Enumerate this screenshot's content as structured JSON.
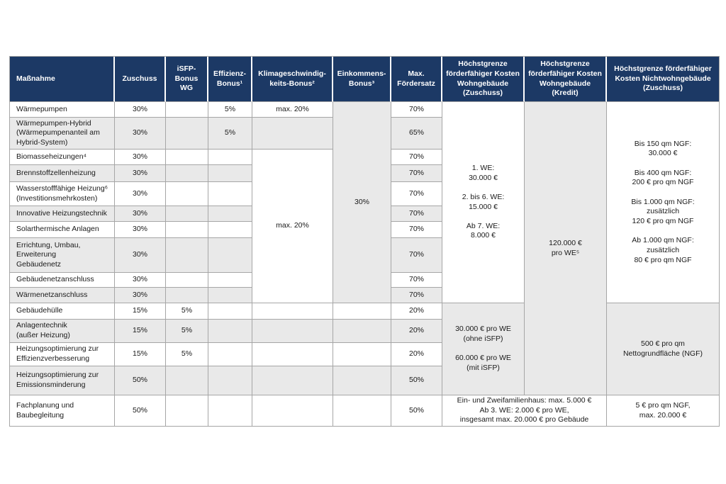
{
  "colors": {
    "header_bg": "#1c3965",
    "header_text": "#ffffff",
    "row_alt_bg": "#e9e9e9",
    "row_bg": "#ffffff",
    "border": "#a6a6a6",
    "body_text": "#1a1a1a"
  },
  "table": {
    "cells": [
      {
        "r": 1,
        "c": 1,
        "bg": "n",
        "align": "left",
        "name": "header-massnahme",
        "text": "Maßnahme"
      },
      {
        "r": 1,
        "c": 2,
        "bg": "n",
        "name": "header-zuschuss",
        "text": "Zuschuss"
      },
      {
        "r": 1,
        "c": 3,
        "bg": "n",
        "name": "header-isfp-bonus-wg",
        "text": "iSFP-Bonus WG"
      },
      {
        "r": 1,
        "c": 4,
        "bg": "n",
        "name": "header-effizienz-bonus",
        "text": "Effizienz-Bonus¹"
      },
      {
        "r": 1,
        "c": 5,
        "bg": "n",
        "name": "header-klimageschwindigkeits-bonus",
        "text": "Klimageschwindig-keits-Bonus²"
      },
      {
        "r": 1,
        "c": 6,
        "bg": "n",
        "name": "header-einkommens-bonus",
        "text": "Einkommens-Bonus³"
      },
      {
        "r": 1,
        "c": 7,
        "bg": "n",
        "name": "header-max-foerdersatz",
        "text": "Max. Fördersatz"
      },
      {
        "r": 1,
        "c": 8,
        "bg": "n",
        "name": "header-hoechstgrenze-wohngebaeude-zuschuss",
        "text": "Höchstgrenze förderfähiger Kosten Wohngebäude (Zuschuss)"
      },
      {
        "r": 1,
        "c": 9,
        "bg": "n",
        "name": "header-hoechstgrenze-wohngebaeude-kredit",
        "text": "Höchstgrenze förderfähiger Kosten Wohngebäude (Kredit)"
      },
      {
        "r": 1,
        "c": 10,
        "bg": "n",
        "name": "header-hoechstgrenze-nichtwohngebaeude-zuschuss",
        "text": "Höchstgrenze förderfähiger Kosten Nichtwohngebäude (Zuschuss)"
      },
      {
        "r": 2,
        "c": 1,
        "bg": "w",
        "align": "left",
        "name": "massnahme-waermepumpen",
        "text": "Wärmepumpen"
      },
      {
        "r": 2,
        "c": 2,
        "bg": "w",
        "text": "30%"
      },
      {
        "r": 2,
        "c": 3,
        "bg": "w",
        "text": ""
      },
      {
        "r": 2,
        "c": 4,
        "bg": "w",
        "text": "5%"
      },
      {
        "r": 2,
        "c": 5,
        "bg": "w",
        "name": "klima-bonus-waermepumpen",
        "text": "max. 20%"
      },
      {
        "r": 2,
        "c": 6,
        "rs": 10,
        "bg": "g",
        "name": "einkommens-bonus-merged",
        "text": "30%"
      },
      {
        "r": 2,
        "c": 7,
        "bg": "w",
        "text": "70%"
      },
      {
        "r": 2,
        "c": 8,
        "rs": 10,
        "bg": "w",
        "name": "limit-wohngebaeude-zuschuss-heizung",
        "text": "1. WE:\n30.000 €\n\n2. bis 6. WE:\n15.000 €\n\nAb 7. WE:\n8.000 €"
      },
      {
        "r": 2,
        "c": 9,
        "rs": 14,
        "bg": "g",
        "name": "limit-wohngebaeude-kredit",
        "text": "120.000 €\npro WE⁵"
      },
      {
        "r": 2,
        "c": 10,
        "rs": 10,
        "bg": "w",
        "name": "limit-nichtwohngebaeude-heizung",
        "text": "Bis 150 qm NGF:\n30.000 €\n\nBis 400 qm NGF:\n200 € pro qm NGF\n\nBis 1.000 qm NGF:\nzusätzlich\n120 € pro qm NGF\n\nAb 1.000 qm NGF:\nzusätzlich\n80 € pro qm NGF"
      },
      {
        "r": 3,
        "c": 1,
        "bg": "g",
        "align": "left",
        "name": "massnahme-waermepumpen-hybrid",
        "text": "Wärmepumpen-Hybrid\n(Wärmepumpenanteil am\nHybrid-System)"
      },
      {
        "r": 3,
        "c": 2,
        "bg": "g",
        "text": "30%"
      },
      {
        "r": 3,
        "c": 3,
        "bg": "g",
        "text": ""
      },
      {
        "r": 3,
        "c": 4,
        "bg": "g",
        "text": "5%"
      },
      {
        "r": 3,
        "c": 5,
        "bg": "g",
        "text": ""
      },
      {
        "r": 3,
        "c": 7,
        "bg": "g",
        "text": "65%"
      },
      {
        "r": 4,
        "c": 1,
        "bg": "w",
        "align": "left",
        "name": "massnahme-biomasseheizungen",
        "text": "Biomasseheizungen⁴"
      },
      {
        "r": 4,
        "c": 2,
        "bg": "w",
        "text": "30%"
      },
      {
        "r": 4,
        "c": 3,
        "bg": "w",
        "text": ""
      },
      {
        "r": 4,
        "c": 4,
        "bg": "w",
        "text": ""
      },
      {
        "r": 4,
        "c": 5,
        "rs": 8,
        "bg": "w",
        "name": "klima-bonus-merged",
        "text": "max. 20%"
      },
      {
        "r": 4,
        "c": 7,
        "bg": "w",
        "text": "70%"
      },
      {
        "r": 5,
        "c": 1,
        "bg": "g",
        "align": "left",
        "name": "massnahme-brennstoffzellenheizung",
        "text": "Brennstoffzellenheizung"
      },
      {
        "r": 5,
        "c": 2,
        "bg": "g",
        "text": "30%"
      },
      {
        "r": 5,
        "c": 3,
        "bg": "g",
        "text": ""
      },
      {
        "r": 5,
        "c": 4,
        "bg": "g",
        "text": ""
      },
      {
        "r": 5,
        "c": 7,
        "bg": "g",
        "text": "70%"
      },
      {
        "r": 6,
        "c": 1,
        "bg": "w",
        "align": "left",
        "name": "massnahme-wasserstofffaehige-heizung",
        "text": "Wasserstofffähige Heizung⁶\n(Investitionsmehrkosten)"
      },
      {
        "r": 6,
        "c": 2,
        "bg": "w",
        "text": "30%"
      },
      {
        "r": 6,
        "c": 3,
        "bg": "w",
        "text": ""
      },
      {
        "r": 6,
        "c": 4,
        "bg": "w",
        "text": ""
      },
      {
        "r": 6,
        "c": 7,
        "bg": "w",
        "text": "70%"
      },
      {
        "r": 7,
        "c": 1,
        "bg": "g",
        "align": "left",
        "name": "massnahme-innovative-heizungstechnik",
        "text": "Innovative Heizungstechnik"
      },
      {
        "r": 7,
        "c": 2,
        "bg": "g",
        "text": "30%"
      },
      {
        "r": 7,
        "c": 3,
        "bg": "g",
        "text": ""
      },
      {
        "r": 7,
        "c": 4,
        "bg": "g",
        "text": ""
      },
      {
        "r": 7,
        "c": 7,
        "bg": "g",
        "text": "70%"
      },
      {
        "r": 8,
        "c": 1,
        "bg": "w",
        "align": "left",
        "name": "massnahme-solarthermische-anlagen",
        "text": "Solarthermische Anlagen"
      },
      {
        "r": 8,
        "c": 2,
        "bg": "w",
        "text": "30%"
      },
      {
        "r": 8,
        "c": 3,
        "bg": "w",
        "text": ""
      },
      {
        "r": 8,
        "c": 4,
        "bg": "w",
        "text": ""
      },
      {
        "r": 8,
        "c": 7,
        "bg": "w",
        "text": "70%"
      },
      {
        "r": 9,
        "c": 1,
        "bg": "g",
        "align": "left",
        "name": "massnahme-gebaeudenetz",
        "text": "Errichtung, Umbau,\nErweiterung\nGebäudenetz"
      },
      {
        "r": 9,
        "c": 2,
        "bg": "g",
        "text": "30%"
      },
      {
        "r": 9,
        "c": 3,
        "bg": "g",
        "text": ""
      },
      {
        "r": 9,
        "c": 4,
        "bg": "g",
        "text": ""
      },
      {
        "r": 9,
        "c": 7,
        "bg": "g",
        "text": "70%"
      },
      {
        "r": 10,
        "c": 1,
        "bg": "w",
        "align": "left",
        "name": "massnahme-gebaeudenetzanschluss",
        "text": "Gebäudenetzanschluss"
      },
      {
        "r": 10,
        "c": 2,
        "bg": "w",
        "text": "30%"
      },
      {
        "r": 10,
        "c": 3,
        "bg": "w",
        "text": ""
      },
      {
        "r": 10,
        "c": 4,
        "bg": "w",
        "text": ""
      },
      {
        "r": 10,
        "c": 7,
        "bg": "w",
        "text": "70%"
      },
      {
        "r": 11,
        "c": 1,
        "bg": "g",
        "align": "left",
        "name": "massnahme-waermenetzanschluss",
        "text": "Wärmenetzanschluss"
      },
      {
        "r": 11,
        "c": 2,
        "bg": "g",
        "text": "30%"
      },
      {
        "r": 11,
        "c": 3,
        "bg": "g",
        "text": ""
      },
      {
        "r": 11,
        "c": 4,
        "bg": "g",
        "text": ""
      },
      {
        "r": 11,
        "c": 7,
        "bg": "g",
        "text": "70%"
      },
      {
        "r": 12,
        "c": 1,
        "bg": "w",
        "align": "left",
        "name": "massnahme-gebaeudehuelle",
        "text": "Gebäudehülle"
      },
      {
        "r": 12,
        "c": 2,
        "bg": "w",
        "text": "15%"
      },
      {
        "r": 12,
        "c": 3,
        "bg": "w",
        "text": "5%"
      },
      {
        "r": 12,
        "c": 4,
        "bg": "w",
        "text": ""
      },
      {
        "r": 12,
        "c": 5,
        "bg": "w",
        "text": ""
      },
      {
        "r": 12,
        "c": 6,
        "bg": "w",
        "text": ""
      },
      {
        "r": 12,
        "c": 7,
        "bg": "w",
        "text": "20%"
      },
      {
        "r": 12,
        "c": 8,
        "rs": 4,
        "bg": "g",
        "name": "limit-wohngebaeude-zuschuss-effizienz",
        "text": "30.000 € pro WE\n(ohne iSFP)\n\n60.000 € pro WE\n(mit iSFP)"
      },
      {
        "r": 12,
        "c": 10,
        "rs": 4,
        "bg": "g",
        "name": "limit-nichtwohngebaeude-effizienz",
        "text": "500 € pro qm\nNettogrundfläche (NGF)"
      },
      {
        "r": 13,
        "c": 1,
        "bg": "g",
        "align": "left",
        "name": "massnahme-anlagentechnik",
        "text": "Anlagentechnik\n(außer Heizung)"
      },
      {
        "r": 13,
        "c": 2,
        "bg": "g",
        "text": "15%"
      },
      {
        "r": 13,
        "c": 3,
        "bg": "g",
        "text": "5%"
      },
      {
        "r": 13,
        "c": 4,
        "bg": "g",
        "text": ""
      },
      {
        "r": 13,
        "c": 5,
        "bg": "g",
        "text": ""
      },
      {
        "r": 13,
        "c": 6,
        "bg": "g",
        "text": ""
      },
      {
        "r": 13,
        "c": 7,
        "bg": "g",
        "text": "20%"
      },
      {
        "r": 14,
        "c": 1,
        "bg": "w",
        "align": "left",
        "name": "massnahme-heizungsoptimierung-effizienz",
        "text": "Heizungsoptimierung zur\nEffizienzverbesserung"
      },
      {
        "r": 14,
        "c": 2,
        "bg": "w",
        "text": "15%"
      },
      {
        "r": 14,
        "c": 3,
        "bg": "w",
        "text": "5%"
      },
      {
        "r": 14,
        "c": 4,
        "bg": "w",
        "text": ""
      },
      {
        "r": 14,
        "c": 5,
        "bg": "w",
        "text": ""
      },
      {
        "r": 14,
        "c": 6,
        "bg": "w",
        "text": ""
      },
      {
        "r": 14,
        "c": 7,
        "bg": "w",
        "text": "20%"
      },
      {
        "r": 15,
        "c": 1,
        "bg": "g",
        "align": "left",
        "name": "massnahme-heizungsoptimierung-emission",
        "text": "Heizungsoptimierung zur\nEmissionsminderung"
      },
      {
        "r": 15,
        "c": 2,
        "bg": "g",
        "text": "50%"
      },
      {
        "r": 15,
        "c": 3,
        "bg": "g",
        "text": ""
      },
      {
        "r": 15,
        "c": 4,
        "bg": "g",
        "text": ""
      },
      {
        "r": 15,
        "c": 5,
        "bg": "g",
        "text": ""
      },
      {
        "r": 15,
        "c": 6,
        "bg": "g",
        "text": ""
      },
      {
        "r": 15,
        "c": 7,
        "bg": "g",
        "text": "50%"
      },
      {
        "r": 16,
        "c": 1,
        "bg": "w",
        "align": "left",
        "name": "massnahme-fachplanung",
        "text": "Fachplanung und\nBaubegleitung"
      },
      {
        "r": 16,
        "c": 2,
        "bg": "w",
        "text": "50%"
      },
      {
        "r": 16,
        "c": 3,
        "bg": "w",
        "text": ""
      },
      {
        "r": 16,
        "c": 4,
        "bg": "w",
        "text": ""
      },
      {
        "r": 16,
        "c": 5,
        "bg": "w",
        "text": ""
      },
      {
        "r": 16,
        "c": 6,
        "bg": "w",
        "text": ""
      },
      {
        "r": 16,
        "c": 7,
        "bg": "w",
        "text": "50%"
      },
      {
        "r": 16,
        "c": 8,
        "cs": 2,
        "bg": "w",
        "name": "limit-wohngebaeude-fachplanung",
        "text": "Ein- und Zweifamilienhaus: max. 5.000 €\nAb 3. WE: 2.000 € pro WE,\ninsgesamt max. 20.000 € pro Gebäude"
      },
      {
        "r": 16,
        "c": 10,
        "bg": "w",
        "name": "limit-nichtwohngebaeude-fachplanung",
        "text": "5 € pro qm NGF,\nmax. 20.000 €"
      }
    ]
  }
}
